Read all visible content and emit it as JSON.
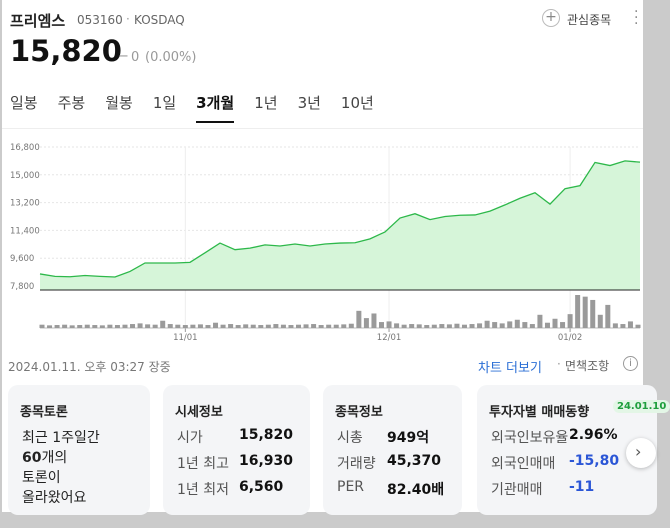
{
  "header": {
    "name": "프리엠스",
    "code": "053160",
    "market": "KOSDAQ",
    "watch": "관심종목"
  },
  "price": {
    "value": "15,820",
    "change_mark": "−",
    "change": "0",
    "change_rate": "(0.00%)"
  },
  "tabs": [
    "일봉",
    "주봉",
    "월봉",
    "1일",
    "3개월",
    "1년",
    "3년",
    "10년"
  ],
  "active_tab": 4,
  "chart": {
    "ylim": [
      7540,
      16800
    ],
    "yticks": [
      {
        "value": 16800,
        "label": "16,800"
      },
      {
        "value": 15000,
        "label": "15,000"
      },
      {
        "value": 13200,
        "label": "13,200"
      },
      {
        "value": 11400,
        "label": "11,400"
      },
      {
        "value": 9600,
        "label": "9,600"
      },
      {
        "value": 7800,
        "label": "7,800"
      }
    ],
    "values": [
      8580,
      8420,
      8400,
      8480,
      8420,
      8380,
      8740,
      9290,
      9290,
      9290,
      9330,
      9950,
      10580,
      10150,
      10250,
      10460,
      10390,
      10520,
      10390,
      10520,
      10580,
      10600,
      10850,
      11300,
      12200,
      12480,
      12100,
      12300,
      12380,
      12400,
      12650,
      13050,
      13480,
      13840,
      13100,
      14100,
      14300,
      15800,
      15600,
      15900,
      15820
    ],
    "color": "#2db84a",
    "fill": "#d6f5d9",
    "volume": {
      "ylim": [
        0,
        100
      ],
      "color": "#9a9a9a",
      "values": [
        10,
        8,
        9,
        10,
        8,
        9,
        10,
        9,
        8,
        10,
        9,
        10,
        12,
        14,
        11,
        10,
        22,
        12,
        10,
        9,
        10,
        11,
        9,
        16,
        10,
        12,
        9,
        11,
        10,
        9,
        10,
        12,
        10,
        9,
        10,
        11,
        12,
        9,
        10,
        10,
        11,
        13,
        52,
        30,
        44,
        18,
        20,
        14,
        10,
        12,
        11,
        9,
        10,
        12,
        11,
        13,
        10,
        12,
        14,
        22,
        18,
        14,
        20,
        25,
        18,
        12,
        40,
        16,
        28,
        18,
        42,
        100,
        95,
        85,
        40,
        70,
        14,
        12,
        20,
        10
      ]
    },
    "xticks": [
      {
        "value": 19,
        "label": "11/01"
      },
      {
        "value": 46,
        "label": "12/01"
      },
      {
        "value": 70,
        "label": "01/02"
      }
    ]
  },
  "timestamp": "2024.01.11. 오후 03:27 장중",
  "links": {
    "more": "차트 더보기",
    "disclaimer": "면책조항"
  },
  "cards": {
    "discussion": {
      "title": "종목토론",
      "line1": "최근 1주일간",
      "count": "60",
      "count_suffix": "개의",
      "line3": "토론이",
      "line4": "올라왔어요"
    },
    "market": {
      "title": "시세정보",
      "rows": [
        {
          "label": "시가",
          "value": "15,820"
        },
        {
          "label": "1년 최고",
          "value": "16,930"
        },
        {
          "label": "1년 최저",
          "value": "6,560"
        }
      ]
    },
    "info": {
      "title": "종목정보",
      "rows": [
        {
          "label": "시총",
          "value": "949억"
        },
        {
          "label": "거래량",
          "value": "45,370"
        },
        {
          "label": "PER",
          "value": "82.40배"
        }
      ]
    },
    "investor": {
      "title": "투자자별 매매동향",
      "date": "24.01.10",
      "rows": [
        {
          "label": "외국인보유율",
          "value": "2.96%"
        },
        {
          "label": "외국인매매",
          "value": "-15,80"
        },
        {
          "label": "기관매매",
          "value": "-11"
        }
      ]
    }
  }
}
